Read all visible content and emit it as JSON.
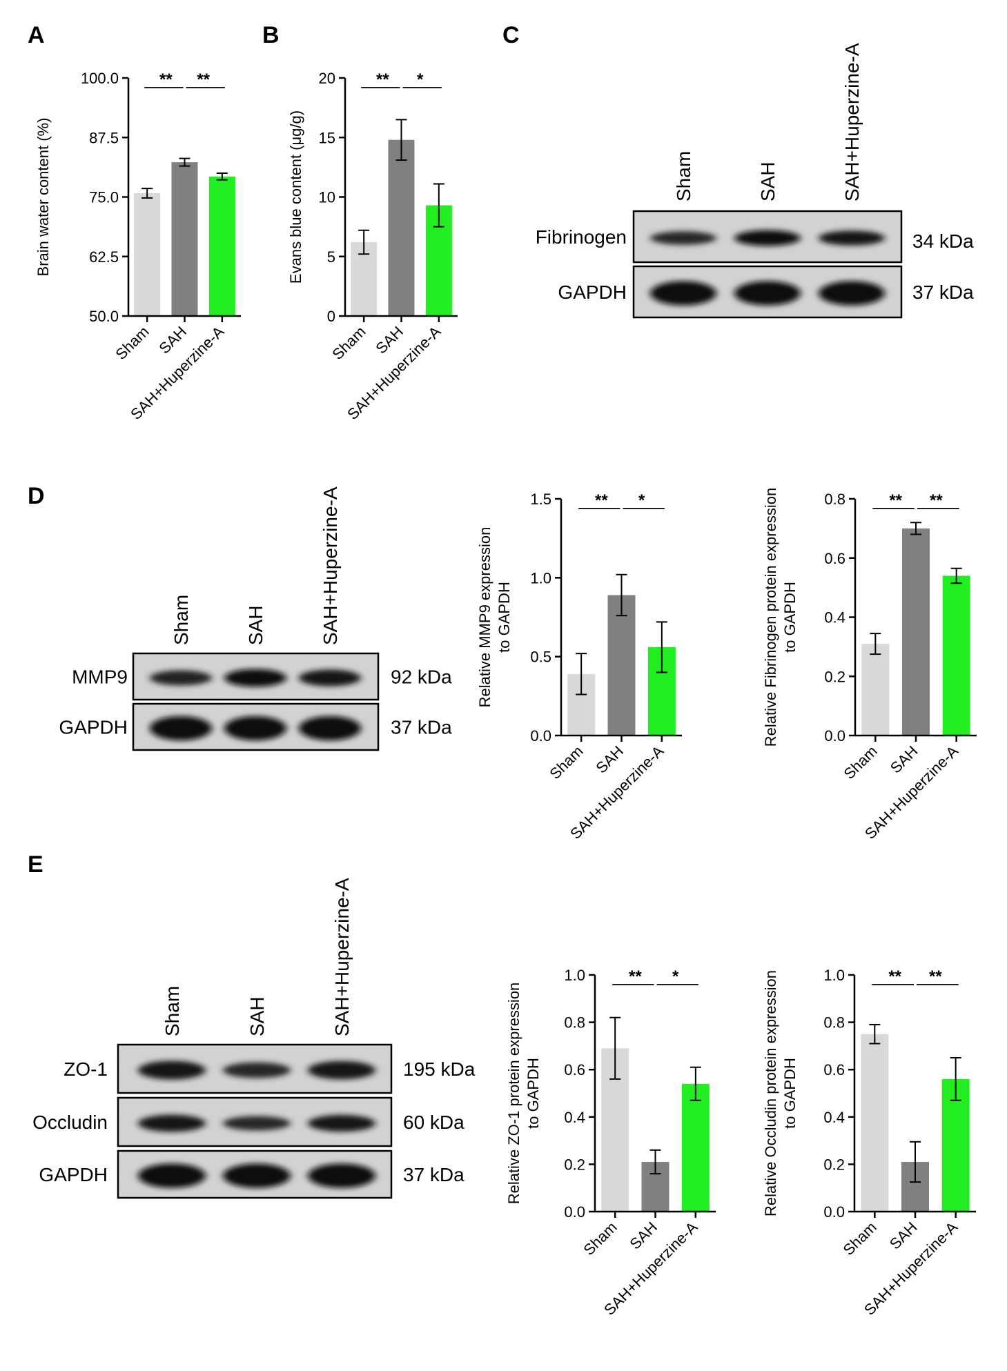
{
  "panels": {
    "A": "A",
    "B": "B",
    "C": "C",
    "D": "D",
    "E": "E"
  },
  "colors": {
    "sham": "#d9d9d9",
    "sah": "#808080",
    "sah_huperzine": "#22ee22"
  },
  "groups": [
    "Sham",
    "SAH",
    "SAH+Huperzine-A"
  ],
  "chart_data": [
    {
      "id": "A",
      "type": "bar",
      "categories": [
        "Sham",
        "SAH",
        "SAH+Huperzine-A"
      ],
      "values": [
        75.8,
        82.3,
        79.3
      ],
      "errors": [
        1.0,
        0.8,
        0.7
      ],
      "ylabel": "Brain water content (%)",
      "ylim": [
        50,
        100
      ],
      "yticks": [
        50,
        62.5,
        75,
        87.5,
        100
      ],
      "ytick_labels": [
        "50.0",
        "62.5",
        "75.0",
        "87.5",
        "100.0"
      ],
      "significance": [
        {
          "from": 0,
          "to": 1,
          "label": "**"
        },
        {
          "from": 1,
          "to": 2,
          "label": "**"
        }
      ]
    },
    {
      "id": "B",
      "type": "bar",
      "categories": [
        "Sham",
        "SAH",
        "SAH+Huperzine-A"
      ],
      "values": [
        6.2,
        14.8,
        9.3
      ],
      "errors": [
        1.0,
        1.7,
        1.8
      ],
      "ylabel": "Evans blue content (μg/g)",
      "ylim": [
        0,
        20
      ],
      "yticks": [
        0,
        5,
        10,
        15,
        20
      ],
      "ytick_labels": [
        "0",
        "5",
        "10",
        "15",
        "20"
      ],
      "significance": [
        {
          "from": 0,
          "to": 1,
          "label": "**"
        },
        {
          "from": 1,
          "to": 2,
          "label": "*"
        }
      ]
    },
    {
      "id": "D-MMP9",
      "type": "bar",
      "categories": [
        "Sham",
        "SAH",
        "SAH+Huperzine-A"
      ],
      "values": [
        0.39,
        0.89,
        0.56
      ],
      "errors": [
        0.13,
        0.13,
        0.16
      ],
      "ylabel": "Relative MMP9 expression to GAPDH",
      "ylabel_lines": [
        "Relative MMP9 expression",
        "to GAPDH"
      ],
      "ylim": [
        0,
        1.5
      ],
      "yticks": [
        0,
        0.5,
        1.0,
        1.5
      ],
      "ytick_labels": [
        "0.0",
        "0.5",
        "1.0",
        "1.5"
      ],
      "significance": [
        {
          "from": 0,
          "to": 1,
          "label": "**"
        },
        {
          "from": 1,
          "to": 2,
          "label": "*"
        }
      ]
    },
    {
      "id": "D-Fibrinogen",
      "type": "bar",
      "categories": [
        "Sham",
        "SAH",
        "SAH+Huperzine-A"
      ],
      "values": [
        0.31,
        0.7,
        0.54
      ],
      "errors": [
        0.035,
        0.02,
        0.025
      ],
      "ylabel": "Relative Fibrinogen protein expression to GAPDH",
      "ylabel_lines": [
        "Relative Fibrinogen protein expression",
        "to GAPDH"
      ],
      "ylim": [
        0,
        0.8
      ],
      "yticks": [
        0,
        0.2,
        0.4,
        0.6,
        0.8
      ],
      "ytick_labels": [
        "0.0",
        "0.2",
        "0.4",
        "0.6",
        "0.8"
      ],
      "significance": [
        {
          "from": 0,
          "to": 1,
          "label": "**"
        },
        {
          "from": 1,
          "to": 2,
          "label": "**"
        }
      ]
    },
    {
      "id": "E-ZO1",
      "type": "bar",
      "categories": [
        "Sham",
        "SAH",
        "SAH+Huperzine-A"
      ],
      "values": [
        0.69,
        0.21,
        0.54
      ],
      "errors": [
        0.13,
        0.05,
        0.07
      ],
      "ylabel": "Relative ZO-1 protein expression to GAPDH",
      "ylabel_lines": [
        "Relative ZO-1 protein expression",
        "to GAPDH"
      ],
      "ylim": [
        0,
        1.0
      ],
      "yticks": [
        0,
        0.2,
        0.4,
        0.6,
        0.8,
        1.0
      ],
      "ytick_labels": [
        "0.0",
        "0.2",
        "0.4",
        "0.6",
        "0.8",
        "1.0"
      ],
      "significance": [
        {
          "from": 0,
          "to": 1,
          "label": "**"
        },
        {
          "from": 1,
          "to": 2,
          "label": "*"
        }
      ]
    },
    {
      "id": "E-Occludin",
      "type": "bar",
      "categories": [
        "Sham",
        "SAH",
        "SAH+Huperzine-A"
      ],
      "values": [
        0.75,
        0.21,
        0.56
      ],
      "errors": [
        0.04,
        0.085,
        0.09
      ],
      "ylabel": "Relative Occludin protein expression to GAPDH",
      "ylabel_lines": [
        "Relative Occludin protein expression",
        "to GAPDH"
      ],
      "ylim": [
        0,
        1.0
      ],
      "yticks": [
        0,
        0.2,
        0.4,
        0.6,
        0.8,
        1.0
      ],
      "ytick_labels": [
        "0.0",
        "0.2",
        "0.4",
        "0.6",
        "0.8",
        "1.0"
      ],
      "significance": [
        {
          "from": 0,
          "to": 1,
          "label": "**"
        },
        {
          "from": 1,
          "to": 2,
          "label": "**"
        }
      ]
    }
  ],
  "blots": [
    {
      "id": "C",
      "lanes": [
        "Sham",
        "SAH",
        "SAH+Huperzine-A"
      ],
      "rows": [
        {
          "protein": "Fibrinogen",
          "kda": "34 kDa",
          "intensity": [
            0.55,
            0.9,
            0.75
          ]
        },
        {
          "protein": "GAPDH",
          "kda": "37 kDa",
          "intensity": [
            0.95,
            0.95,
            0.95
          ]
        }
      ]
    },
    {
      "id": "D",
      "lanes": [
        "Sham",
        "SAH",
        "SAH+Huperzine-A"
      ],
      "rows": [
        {
          "protein": "MMP9",
          "kda": "92 kDa",
          "intensity": [
            0.6,
            0.95,
            0.8
          ]
        },
        {
          "protein": "GAPDH",
          "kda": "37 kDa",
          "intensity": [
            0.95,
            0.95,
            0.95
          ]
        }
      ]
    },
    {
      "id": "E",
      "lanes": [
        "Sham",
        "SAH",
        "SAH+Huperzine-A"
      ],
      "rows": [
        {
          "protein": "ZO-1",
          "kda": "195 kDa",
          "intensity": [
            0.85,
            0.5,
            0.8
          ]
        },
        {
          "protein": "Occludin",
          "kda": "60 kDa",
          "intensity": [
            0.85,
            0.5,
            0.8
          ]
        },
        {
          "protein": "GAPDH",
          "kda": "37 kDa",
          "intensity": [
            0.95,
            0.95,
            0.95
          ]
        }
      ]
    }
  ]
}
